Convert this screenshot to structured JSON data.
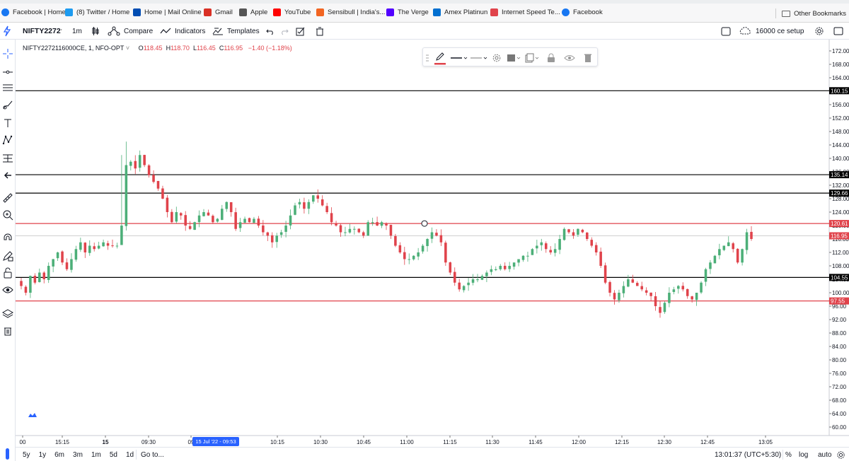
{
  "bookmarks": [
    {
      "label": "Facebook | Home",
      "icon": "facebook-icon",
      "color": "#1877f2"
    },
    {
      "label": "(8) Twitter / Home",
      "icon": "twitter-icon",
      "color": "#1d9bf0"
    },
    {
      "label": "Home | Mail Online",
      "icon": "mail-online-icon",
      "color": "#004db3"
    },
    {
      "label": "Gmail",
      "icon": "gmail-icon",
      "color": "#d93025"
    },
    {
      "label": "Apple",
      "icon": "apple-icon",
      "color": "#555555"
    },
    {
      "label": "YouTube",
      "icon": "youtube-icon",
      "color": "#ff0000"
    },
    {
      "label": "Sensibull | India's...",
      "icon": "sensibull-icon",
      "color": "#f26522"
    },
    {
      "label": "The Verge",
      "icon": "verge-icon",
      "color": "#5200ff"
    },
    {
      "label": "Amex Platinun",
      "icon": "amex-icon",
      "color": "#016fd0"
    },
    {
      "label": "Internet Speed Te...",
      "icon": "speedtest-icon",
      "color": "#e0434b"
    },
    {
      "label": "Facebook",
      "icon": "facebook-icon",
      "color": "#1877f2"
    }
  ],
  "other_bookmarks": "Other Bookmarks",
  "toolbar": {
    "symbol": "NIFTY2272",
    "interval": "1m",
    "compare": "Compare",
    "indicators": "Indicators",
    "templates": "Templates",
    "layout_name": "16000 ce setup"
  },
  "legend": {
    "title": "NIFTY2272116000CE, 1, NFO-OPT",
    "o_label": "O",
    "o": "118.45",
    "h_label": "H",
    "h": "118.70",
    "l_label": "L",
    "l": "116.45",
    "c_label": "C",
    "c": "116.95",
    "change": "−1.40 (−1.18%)"
  },
  "bottom": {
    "ranges": [
      "5y",
      "1y",
      "6m",
      "3m",
      "1m",
      "5d",
      "1d"
    ],
    "goto": "Go to...",
    "time": "13:01:37 (UTC+5:30)",
    "percent": "%",
    "log": "log",
    "auto": "auto"
  },
  "colors": {
    "up": "#4caf78",
    "down": "#e0434b",
    "hline_black": "#000000",
    "hline_red": "#e0434b",
    "highlight_tag": "#2962ff"
  },
  "chart_data": {
    "type": "candlestick",
    "symbol": "NIFTY2272116000CE",
    "ylim": [
      58,
      174
    ],
    "y_ticks": [
      "172.00",
      "168.00",
      "164.00",
      "160.00",
      "156.00",
      "152.00",
      "148.00",
      "144.00",
      "140.00",
      "136.00",
      "132.00",
      "128.00",
      "124.00",
      "120.00",
      "116.00",
      "112.00",
      "108.00",
      "104.00",
      "100.00",
      "96.00",
      "92.00",
      "88.00",
      "84.00",
      "80.00",
      "76.00",
      "72.00",
      "68.00",
      "64.00",
      "60.00"
    ],
    "x_ticks": [
      "00",
      "15:15",
      "15",
      "09:30",
      "09",
      "10:15",
      "10:30",
      "10:45",
      "11:00",
      "11:15",
      "11:30",
      "11:45",
      "12:00",
      "12:15",
      "12:30",
      "12:45",
      "13:05"
    ],
    "x_tick_bold": [
      false,
      false,
      true,
      false,
      false,
      false,
      false,
      false,
      false,
      false,
      false,
      false,
      false,
      false,
      false,
      false,
      false
    ],
    "crosshair_time_label": "15 Jul '22 - 09:53",
    "horizontal_lines": [
      {
        "price": 160.15,
        "label": "160.15",
        "color": "#000000"
      },
      {
        "price": 135.14,
        "label": "135.14",
        "color": "#000000"
      },
      {
        "price": 129.66,
        "label": "129.66",
        "color": "#000000"
      },
      {
        "price": 120.61,
        "label": "120.61",
        "color": "#e0434b"
      },
      {
        "price": 104.55,
        "label": "104.55",
        "color": "#000000"
      },
      {
        "price": 97.55,
        "label": "97.55",
        "color": "#e0434b"
      }
    ],
    "last_price": {
      "price": 116.95,
      "label": "116.95"
    },
    "path": [
      102,
      100,
      105,
      103,
      106,
      104,
      108,
      110,
      112,
      109,
      107,
      110,
      113,
      115,
      112,
      114,
      113,
      114,
      115,
      114,
      114,
      114,
      120,
      138,
      139,
      137,
      141,
      138,
      135,
      133,
      131,
      128,
      124,
      121,
      124,
      123,
      120,
      119,
      121,
      123,
      124,
      123,
      121,
      122,
      125,
      127,
      124,
      119,
      121,
      122,
      121,
      122,
      120,
      118,
      117,
      115,
      117,
      118,
      120,
      123,
      126,
      127,
      125,
      127,
      129,
      128,
      126,
      124,
      121,
      120,
      118,
      118,
      119,
      119,
      118,
      117,
      121,
      121,
      120,
      121,
      120,
      117,
      114,
      112,
      110,
      110,
      111,
      112,
      114,
      116,
      118,
      117,
      115,
      109,
      106,
      103,
      101,
      102,
      103,
      104,
      104,
      105,
      106,
      107,
      107,
      108,
      107,
      108,
      109,
      110,
      111,
      111,
      113,
      114,
      115,
      113,
      112,
      113,
      116,
      119,
      118,
      117,
      119,
      118,
      116,
      114,
      112,
      108,
      103,
      100,
      98,
      100,
      102,
      104,
      103,
      102,
      101,
      100,
      99,
      96,
      94,
      97,
      100,
      101,
      102,
      101,
      99,
      98,
      100,
      103,
      107,
      109,
      111,
      113,
      114,
      115,
      113,
      109,
      113,
      118,
      116
    ]
  }
}
